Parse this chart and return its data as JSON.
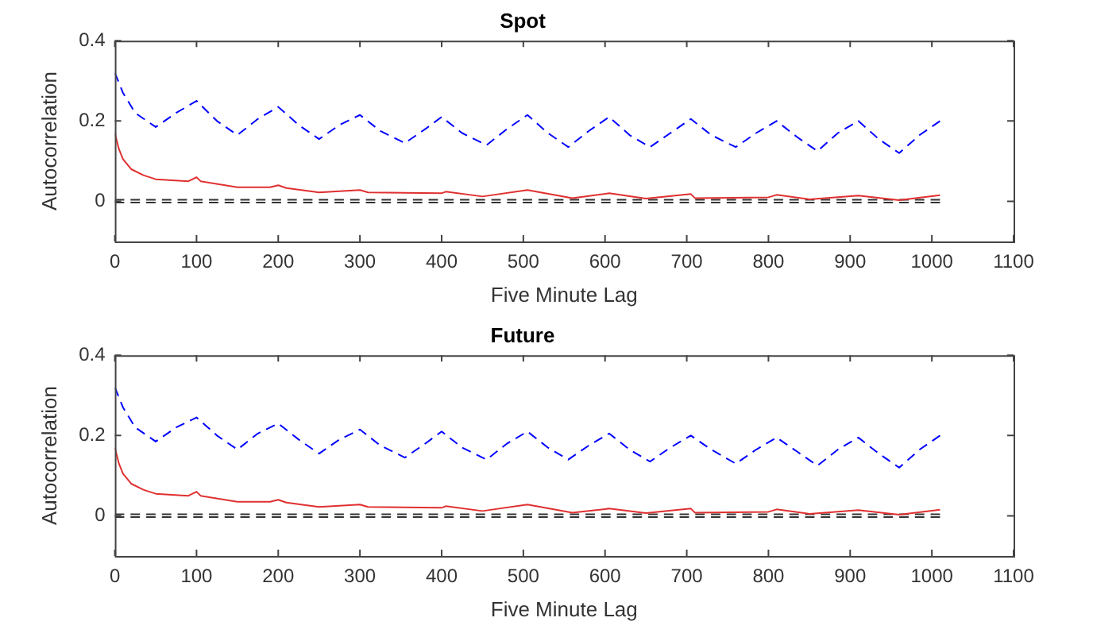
{
  "chart_data": [
    {
      "type": "line",
      "title": "Spot",
      "xlabel": "Five Minute Lag",
      "ylabel": "Autocorrelation",
      "xlim": [
        0,
        1100
      ],
      "xticks": [
        0,
        100,
        200,
        300,
        400,
        500,
        600,
        700,
        800,
        900,
        1000,
        1100
      ],
      "ylim": [
        -0.1,
        0.4
      ],
      "yticks": [
        0,
        0.2,
        0.4
      ],
      "grid": false,
      "legend": false,
      "marker": "none",
      "series": [
        {
          "color": "#0000ff",
          "line_style": "dashed",
          "x": [
            0,
            10,
            25,
            50,
            75,
            100,
            125,
            150,
            175,
            200,
            225,
            250,
            275,
            300,
            325,
            355,
            380,
            400,
            425,
            455,
            480,
            505,
            530,
            555,
            580,
            605,
            630,
            655,
            680,
            705,
            730,
            760,
            785,
            810,
            835,
            860,
            885,
            910,
            935,
            960,
            985,
            1010
          ],
          "values": [
            0.32,
            0.27,
            0.22,
            0.185,
            0.22,
            0.25,
            0.2,
            0.165,
            0.205,
            0.235,
            0.19,
            0.155,
            0.19,
            0.215,
            0.175,
            0.145,
            0.18,
            0.21,
            0.17,
            0.14,
            0.18,
            0.215,
            0.17,
            0.135,
            0.175,
            0.21,
            0.165,
            0.135,
            0.17,
            0.205,
            0.165,
            0.135,
            0.17,
            0.2,
            0.16,
            0.125,
            0.17,
            0.2,
            0.155,
            0.12,
            0.165,
            0.2
          ]
        },
        {
          "color": "#e03030",
          "line_style": "solid",
          "x": [
            0,
            5,
            10,
            20,
            35,
            50,
            90,
            100,
            105,
            150,
            190,
            200,
            210,
            250,
            300,
            310,
            400,
            405,
            450,
            505,
            560,
            605,
            650,
            705,
            710,
            800,
            810,
            850,
            910,
            960,
            1010
          ],
          "values": [
            0.17,
            0.13,
            0.105,
            0.08,
            0.065,
            0.055,
            0.05,
            0.06,
            0.05,
            0.035,
            0.035,
            0.04,
            0.033,
            0.022,
            0.028,
            0.022,
            0.02,
            0.024,
            0.012,
            0.028,
            0.008,
            0.02,
            0.007,
            0.018,
            0.008,
            0.01,
            0.016,
            0.005,
            0.014,
            0.003,
            0.015
          ]
        },
        {
          "color": "#333333",
          "line_style": "dashed",
          "x": [
            0,
            1010
          ],
          "values": [
            0.004,
            0.004
          ]
        },
        {
          "color": "#333333",
          "line_style": "dashed",
          "x": [
            0,
            1010
          ],
          "values": [
            -0.003,
            -0.003
          ]
        }
      ]
    },
    {
      "type": "line",
      "title": "Future",
      "xlabel": "Five Minute Lag",
      "ylabel": "Autocorrelation",
      "xlim": [
        0,
        1100
      ],
      "xticks": [
        0,
        100,
        200,
        300,
        400,
        500,
        600,
        700,
        800,
        900,
        1000,
        1100
      ],
      "ylim": [
        -0.1,
        0.4
      ],
      "yticks": [
        0,
        0.2,
        0.4
      ],
      "grid": false,
      "legend": false,
      "marker": "none",
      "series": [
        {
          "color": "#0000ff",
          "line_style": "dashed",
          "x": [
            0,
            10,
            25,
            50,
            75,
            100,
            125,
            150,
            175,
            200,
            225,
            250,
            275,
            300,
            325,
            355,
            380,
            400,
            425,
            455,
            480,
            505,
            530,
            555,
            580,
            605,
            630,
            655,
            680,
            705,
            730,
            760,
            785,
            810,
            835,
            860,
            885,
            910,
            935,
            960,
            985,
            1010
          ],
          "values": [
            0.32,
            0.27,
            0.22,
            0.185,
            0.22,
            0.245,
            0.2,
            0.165,
            0.205,
            0.23,
            0.19,
            0.155,
            0.19,
            0.215,
            0.175,
            0.145,
            0.18,
            0.21,
            0.17,
            0.14,
            0.18,
            0.21,
            0.17,
            0.14,
            0.175,
            0.205,
            0.165,
            0.135,
            0.17,
            0.2,
            0.165,
            0.13,
            0.165,
            0.195,
            0.16,
            0.125,
            0.165,
            0.195,
            0.155,
            0.12,
            0.165,
            0.2
          ]
        },
        {
          "color": "#e03030",
          "line_style": "solid",
          "x": [
            0,
            5,
            10,
            20,
            35,
            50,
            90,
            100,
            105,
            150,
            190,
            200,
            210,
            250,
            300,
            310,
            400,
            405,
            450,
            505,
            560,
            605,
            650,
            705,
            710,
            800,
            810,
            850,
            910,
            960,
            1010
          ],
          "values": [
            0.17,
            0.13,
            0.105,
            0.08,
            0.065,
            0.055,
            0.05,
            0.06,
            0.05,
            0.035,
            0.035,
            0.04,
            0.033,
            0.022,
            0.028,
            0.022,
            0.02,
            0.024,
            0.012,
            0.028,
            0.008,
            0.018,
            0.007,
            0.018,
            0.008,
            0.01,
            0.016,
            0.005,
            0.014,
            0.003,
            0.015
          ]
        },
        {
          "color": "#333333",
          "line_style": "dashed",
          "x": [
            0,
            1010
          ],
          "values": [
            0.004,
            0.004
          ]
        },
        {
          "color": "#333333",
          "line_style": "dashed",
          "x": [
            0,
            1010
          ],
          "values": [
            -0.003,
            -0.003
          ]
        }
      ]
    }
  ]
}
